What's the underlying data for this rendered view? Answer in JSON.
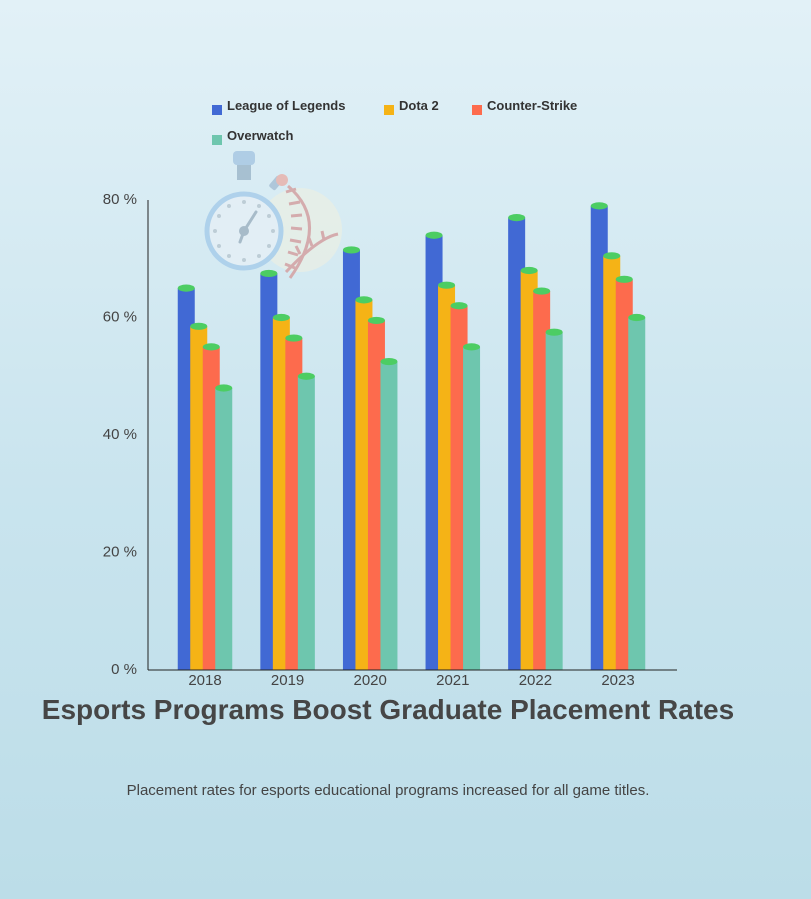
{
  "chart_data": {
    "type": "bar",
    "title": "Esports Programs Boost Graduate Placement Rates",
    "subtitle": "Placement rates for esports educational programs increased for all game titles.",
    "categories": [
      "2018",
      "2019",
      "2020",
      "2021",
      "2022",
      "2023"
    ],
    "series": [
      {
        "name": "League of Legends",
        "color": "#4169d4",
        "values": [
          65,
          67.5,
          71.5,
          74,
          77,
          79
        ]
      },
      {
        "name": "Dota 2",
        "color": "#f5b316",
        "values": [
          58.5,
          60,
          63,
          65.5,
          68,
          70.5
        ]
      },
      {
        "name": "Counter-Strike",
        "color": "#fd6b4d",
        "values": [
          55,
          56.5,
          59.5,
          62,
          64.5,
          66.5
        ]
      },
      {
        "name": "Overwatch",
        "color": "#6ec6ae",
        "values": [
          48,
          50,
          52.5,
          55,
          57.5,
          60
        ]
      }
    ],
    "cap_color": "#4ccd63",
    "ylim": [
      0,
      80
    ],
    "yticks": [
      0,
      20,
      40,
      60,
      80
    ],
    "ytick_labels": [
      "0 %",
      "20 %",
      "40 %",
      "60 %",
      "80 %"
    ],
    "xlabel": "",
    "ylabel": "",
    "grid": false,
    "legend_position": "top"
  }
}
